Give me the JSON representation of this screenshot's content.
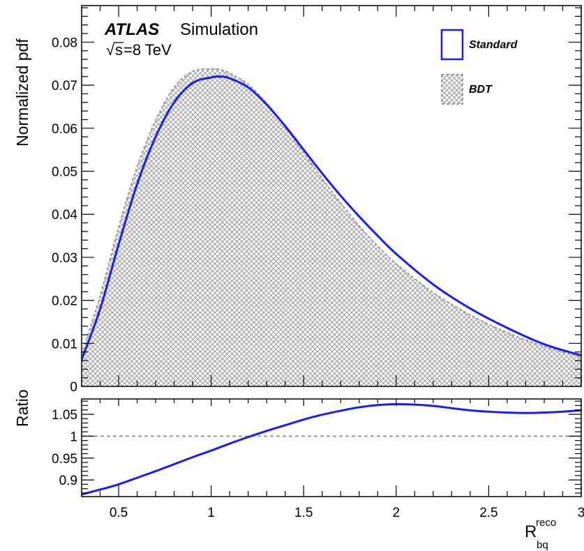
{
  "header": {
    "experiment": "ATLAS",
    "label": "Simulation",
    "energy_sqrt": "√",
    "energy_s": "s",
    "energy_rest": "=8 TeV"
  },
  "legend": {
    "standard_label": "Standard",
    "bdt_label": "BDT",
    "standard_color": "#1a1aff",
    "bdt_color": "#8c8c8c",
    "placement": "top-right"
  },
  "axes": {
    "top_ylabel": "Normalized pdf",
    "bottom_ylabel": "Ratio",
    "xlabel_main": "R",
    "xlabel_sup": "reco",
    "xlabel_sub": "bq"
  },
  "chart_data": [
    {
      "type": "area",
      "panel": "main",
      "xlim": [
        0.3,
        3.0
      ],
      "ylim": [
        0,
        0.0885
      ],
      "x_ticks": [
        0.5,
        1,
        1.5,
        2,
        2.5,
        3
      ],
      "x_tick_labels": [
        "0.5",
        "1",
        "1.5",
        "2",
        "2.5",
        "3"
      ],
      "y_ticks": [
        0,
        0.01,
        0.02,
        0.03,
        0.04,
        0.05,
        0.06,
        0.07,
        0.08
      ],
      "y_tick_labels": [
        "0",
        "0.01",
        "0.02",
        "0.03",
        "0.04",
        "0.05",
        "0.06",
        "0.07",
        "0.08"
      ],
      "series": [
        {
          "name": "Standard",
          "style": "line",
          "x": [
            0.3,
            0.4,
            0.5,
            0.6,
            0.7,
            0.8,
            0.9,
            1.0,
            1.05,
            1.1,
            1.2,
            1.3,
            1.4,
            1.5,
            1.6,
            1.7,
            1.8,
            1.9,
            2.0,
            2.2,
            2.4,
            2.6,
            2.8,
            3.0
          ],
          "y": [
            0.0062,
            0.018,
            0.033,
            0.047,
            0.058,
            0.066,
            0.0705,
            0.0718,
            0.072,
            0.0716,
            0.0695,
            0.0655,
            0.0605,
            0.055,
            0.0495,
            0.0443,
            0.0395,
            0.035,
            0.0308,
            0.0237,
            0.0181,
            0.0136,
            0.0098,
            0.0072
          ]
        },
        {
          "name": "BDT",
          "style": "hatched-area",
          "x": [
            0.3,
            0.4,
            0.5,
            0.6,
            0.7,
            0.8,
            0.9,
            1.0,
            1.05,
            1.1,
            1.2,
            1.3,
            1.4,
            1.5,
            1.6,
            1.7,
            1.8,
            1.9,
            2.0,
            2.2,
            2.4,
            2.6,
            2.8,
            3.0
          ],
          "y": [
            0.0075,
            0.021,
            0.037,
            0.051,
            0.0618,
            0.0695,
            0.0732,
            0.0738,
            0.0736,
            0.0728,
            0.0702,
            0.0658,
            0.0603,
            0.0543,
            0.0483,
            0.0426,
            0.0373,
            0.0326,
            0.0285,
            0.0218,
            0.0166,
            0.0125,
            0.0093,
            0.0068
          ]
        }
      ]
    },
    {
      "type": "line",
      "panel": "ratio",
      "xlim": [
        0.3,
        3.0
      ],
      "ylim": [
        0.862,
        1.085
      ],
      "x_ticks": [
        0.5,
        1,
        1.5,
        2,
        2.5,
        3
      ],
      "x_tick_labels": [
        "0.5",
        "1",
        "1.5",
        "2",
        "2.5",
        "3"
      ],
      "y_ticks": [
        0.9,
        0.95,
        1,
        1.05
      ],
      "y_tick_labels": [
        "0.9",
        "0.95",
        "1",
        "1.05"
      ],
      "reference_line": 1.0,
      "series": [
        {
          "name": "Ratio",
          "x": [
            0.3,
            0.4,
            0.5,
            0.6,
            0.7,
            0.8,
            0.9,
            1.0,
            1.1,
            1.2,
            1.3,
            1.4,
            1.5,
            1.6,
            1.7,
            1.8,
            1.9,
            2.0,
            2.1,
            2.2,
            2.3,
            2.4,
            2.5,
            2.6,
            2.7,
            2.8,
            2.9,
            3.0
          ],
          "y": [
            0.867,
            0.878,
            0.89,
            0.905,
            0.92,
            0.936,
            0.952,
            0.967,
            0.983,
            0.998,
            1.012,
            1.025,
            1.038,
            1.049,
            1.058,
            1.066,
            1.071,
            1.073,
            1.072,
            1.069,
            1.064,
            1.059,
            1.056,
            1.054,
            1.053,
            1.054,
            1.056,
            1.059
          ]
        }
      ]
    }
  ]
}
